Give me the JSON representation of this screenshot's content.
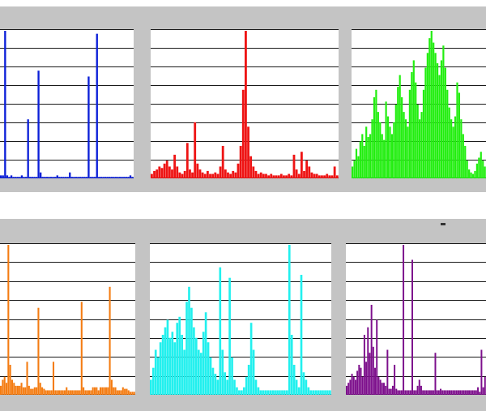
{
  "colors": {
    "background": "#ffffff",
    "frame": "#c4c4c4",
    "grid": "#1a1a1a",
    "blue": "#0b1fd8",
    "red": "#ee1414",
    "green": "#22ee10",
    "orange": "#f47c12",
    "cyan": "#22f0ee",
    "purple": "#7d0f8c"
  },
  "chart_data": [
    {
      "type": "bar",
      "series": [
        {
          "color": "#0b1fd8",
          "values": [
            2,
            2,
            100,
            2,
            1,
            2,
            1,
            1,
            1,
            1,
            2,
            1,
            1,
            40,
            1,
            1,
            1,
            1,
            73,
            4,
            1,
            1,
            1,
            1,
            1,
            1,
            1,
            2,
            1,
            1,
            1,
            1,
            1,
            4,
            1,
            1,
            1,
            1,
            1,
            1,
            1,
            1,
            69,
            1,
            1,
            1,
            98,
            1,
            1,
            1,
            1,
            1,
            1,
            1,
            1,
            1,
            1,
            1,
            1,
            1,
            1,
            1,
            2,
            1
          ]
        }
      ],
      "ylim": [
        0,
        100
      ],
      "grid": true
    },
    {
      "type": "bar",
      "series": [
        {
          "color": "#ee1414",
          "values": [
            3,
            5,
            6,
            8,
            7,
            10,
            12,
            8,
            6,
            16,
            8,
            4,
            3,
            5,
            24,
            6,
            4,
            38,
            10,
            6,
            4,
            3,
            5,
            3,
            3,
            4,
            3,
            8,
            22,
            6,
            4,
            3,
            5,
            4,
            10,
            22,
            60,
            100,
            35,
            15,
            8,
            5,
            3,
            4,
            3,
            3,
            2,
            3,
            2,
            2,
            2,
            3,
            2,
            2,
            3,
            2,
            16,
            6,
            3,
            18,
            5,
            12,
            8,
            4,
            3,
            3,
            2,
            2,
            2,
            3,
            2,
            2,
            8,
            2
          ]
        }
      ],
      "ylim": [
        0,
        100
      ],
      "grid": true
    },
    {
      "type": "bar",
      "series": [
        {
          "color": "#22ee10",
          "values": [
            8,
            12,
            20,
            15,
            25,
            30,
            22,
            35,
            28,
            30,
            40,
            55,
            60,
            45,
            38,
            30,
            26,
            52,
            42,
            35,
            30,
            38,
            50,
            62,
            70,
            55,
            45,
            40,
            35,
            60,
            72,
            80,
            65,
            50,
            40,
            45,
            60,
            75,
            85,
            95,
            100,
            92,
            85,
            78,
            70,
            80,
            90,
            75,
            60,
            48,
            40,
            35,
            42,
            65,
            58,
            40,
            30,
            22,
            12,
            6,
            4,
            3,
            5,
            10,
            14,
            18,
            12,
            8
          ]
        }
      ],
      "ylim": [
        0,
        100
      ],
      "grid": true
    },
    {
      "type": "bar",
      "series": [
        {
          "color": "#f47c12",
          "values": [
            6,
            10,
            12,
            8,
            100,
            20,
            10,
            8,
            6,
            6,
            6,
            8,
            5,
            5,
            22,
            6,
            4,
            4,
            5,
            5,
            58,
            8,
            5,
            4,
            3,
            3,
            3,
            3,
            22,
            3,
            3,
            3,
            3,
            3,
            3,
            5,
            3,
            3,
            3,
            3,
            3,
            3,
            3,
            62,
            5,
            3,
            3,
            3,
            3,
            5,
            5,
            5,
            3,
            5,
            5,
            5,
            5,
            5,
            72,
            10,
            5,
            5,
            3,
            3,
            3,
            5,
            4,
            4,
            3,
            2,
            2,
            2
          ]
        }
      ],
      "ylim": [
        0,
        100
      ],
      "grid": true
    },
    {
      "type": "bar",
      "series": [
        {
          "color": "#22f0ee",
          "values": [
            10,
            18,
            30,
            25,
            35,
            40,
            45,
            50,
            38,
            42,
            35,
            48,
            52,
            40,
            30,
            62,
            72,
            58,
            45,
            38,
            30,
            28,
            42,
            55,
            35,
            25,
            18,
            14,
            10,
            85,
            30,
            15,
            10,
            78,
            25,
            10,
            5,
            3,
            3,
            5,
            12,
            20,
            48,
            30,
            10,
            5,
            3,
            3,
            3,
            3,
            3,
            3,
            3,
            3,
            3,
            3,
            3,
            3,
            100,
            40,
            20,
            10,
            5,
            80,
            15,
            10,
            5,
            3,
            3,
            3,
            3,
            3,
            3,
            3,
            3,
            3
          ]
        }
      ],
      "ylim": [
        0,
        100
      ],
      "grid": true
    },
    {
      "type": "bar",
      "series": [
        {
          "color": "#7d0f8c",
          "values": [
            6,
            8,
            10,
            14,
            12,
            10,
            16,
            20,
            18,
            12,
            40,
            22,
            45,
            28,
            60,
            32,
            18,
            50,
            12,
            10,
            8,
            8,
            6,
            30,
            4,
            4,
            6,
            20,
            4,
            3,
            3,
            3,
            100,
            3,
            3,
            3,
            3,
            90,
            3,
            3,
            6,
            10,
            6,
            3,
            3,
            3,
            3,
            3,
            3,
            3,
            28,
            3,
            3,
            4,
            3,
            3,
            3,
            3,
            3,
            3,
            3,
            3,
            3,
            3,
            3,
            3,
            3,
            3,
            3,
            3,
            3,
            3,
            3,
            3,
            5,
            2,
            30,
            5,
            12
          ]
        }
      ],
      "ylim": [
        0,
        100
      ],
      "grid": true
    }
  ]
}
